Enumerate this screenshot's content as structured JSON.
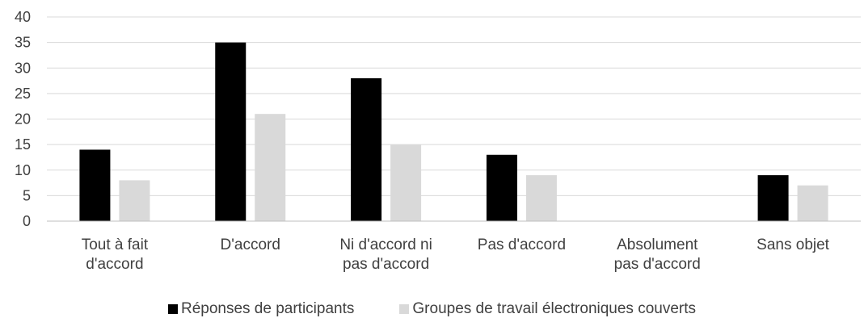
{
  "chart_data": {
    "type": "bar",
    "categories": [
      [
        "Tout à fait",
        "d'accord"
      ],
      [
        "D'accord"
      ],
      [
        "Ni d'accord ni",
        "pas d'accord"
      ],
      [
        "Pas d'accord"
      ],
      [
        "Absolument",
        "pas d'accord"
      ],
      [
        "Sans objet"
      ]
    ],
    "series": [
      {
        "name": "Réponses de participants",
        "color": "#000000",
        "values": [
          14,
          35,
          28,
          13,
          0,
          9
        ]
      },
      {
        "name": "Groupes de travail électroniques couverts",
        "color": "#d9d9d9",
        "values": [
          8,
          21,
          15,
          9,
          0,
          7
        ]
      }
    ],
    "yticks": [
      "0",
      "5",
      "10",
      "15",
      "20",
      "25",
      "30",
      "35",
      "40"
    ],
    "ylim": [
      0,
      40
    ],
    "grid": true,
    "legend_position": "bottom"
  }
}
